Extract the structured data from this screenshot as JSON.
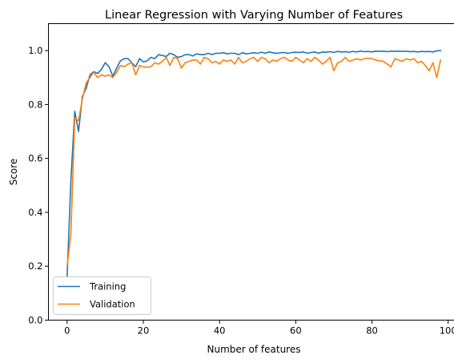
{
  "chart_data": {
    "type": "line",
    "title": "Linear Regression with Varying Number of Features",
    "xlabel": "Number of features",
    "ylabel": "Score",
    "xlim": [
      -4.9,
      102.9
    ],
    "ylim": [
      0.0,
      1.1
    ],
    "xticks": [
      0,
      20,
      40,
      60,
      80,
      100
    ],
    "xtick_labels": [
      "0",
      "20",
      "40",
      "60",
      "80",
      "100"
    ],
    "yticks": [
      0.0,
      0.2,
      0.4,
      0.6,
      0.8,
      1.0
    ],
    "ytick_labels": [
      "0.0",
      "0.2",
      "0.4",
      "0.6",
      "0.8",
      "1.0"
    ],
    "grid": false,
    "legend_position": "lower-left",
    "x_start": 0,
    "series": [
      {
        "name": "Training",
        "color": "#1f77b4",
        "values": [
          0.16,
          0.52,
          0.775,
          0.7,
          0.83,
          0.86,
          0.91,
          0.922,
          0.915,
          0.93,
          0.955,
          0.94,
          0.905,
          0.935,
          0.962,
          0.97,
          0.97,
          0.955,
          0.94,
          0.97,
          0.958,
          0.962,
          0.975,
          0.97,
          0.985,
          0.982,
          0.978,
          0.99,
          0.985,
          0.975,
          0.978,
          0.985,
          0.985,
          0.98,
          0.988,
          0.985,
          0.985,
          0.99,
          0.985,
          0.99,
          0.99,
          0.992,
          0.988,
          0.99,
          0.99,
          0.985,
          0.992,
          0.988,
          0.99,
          0.992,
          0.99,
          0.994,
          0.99,
          0.995,
          0.992,
          0.99,
          0.992,
          0.993,
          0.99,
          0.993,
          0.994,
          0.993,
          0.995,
          0.99,
          0.993,
          0.995,
          0.99,
          0.995,
          0.994,
          0.996,
          0.993,
          0.997,
          0.995,
          0.996,
          0.994,
          0.997,
          0.995,
          0.998,
          0.996,
          0.997,
          0.995,
          0.998,
          0.997,
          0.998,
          0.996,
          0.998,
          0.997,
          0.998,
          0.997,
          0.998,
          0.996,
          0.997,
          0.995,
          0.997,
          0.996,
          0.997,
          0.995,
          0.999,
          1.0
        ]
      },
      {
        "name": "Validation",
        "color": "#ff7f0e",
        "values": [
          0.2,
          0.32,
          0.75,
          0.74,
          0.82,
          0.88,
          0.9,
          0.92,
          0.9,
          0.91,
          0.905,
          0.91,
          0.9,
          0.92,
          0.945,
          0.94,
          0.95,
          0.955,
          0.91,
          0.945,
          0.94,
          0.938,
          0.94,
          0.955,
          0.95,
          0.96,
          0.975,
          0.945,
          0.975,
          0.97,
          0.935,
          0.955,
          0.96,
          0.965,
          0.965,
          0.95,
          0.975,
          0.97,
          0.955,
          0.96,
          0.95,
          0.965,
          0.96,
          0.965,
          0.95,
          0.975,
          0.955,
          0.96,
          0.97,
          0.975,
          0.96,
          0.975,
          0.97,
          0.955,
          0.965,
          0.96,
          0.97,
          0.975,
          0.965,
          0.96,
          0.975,
          0.965,
          0.955,
          0.97,
          0.96,
          0.975,
          0.965,
          0.95,
          0.96,
          0.975,
          0.925,
          0.955,
          0.96,
          0.975,
          0.96,
          0.965,
          0.97,
          0.965,
          0.97,
          0.972,
          0.97,
          0.965,
          0.962,
          0.96,
          0.95,
          0.94,
          0.97,
          0.965,
          0.96,
          0.97,
          0.965,
          0.97,
          0.955,
          0.96,
          0.945,
          0.925,
          0.955,
          0.9,
          0.965
        ]
      }
    ]
  }
}
